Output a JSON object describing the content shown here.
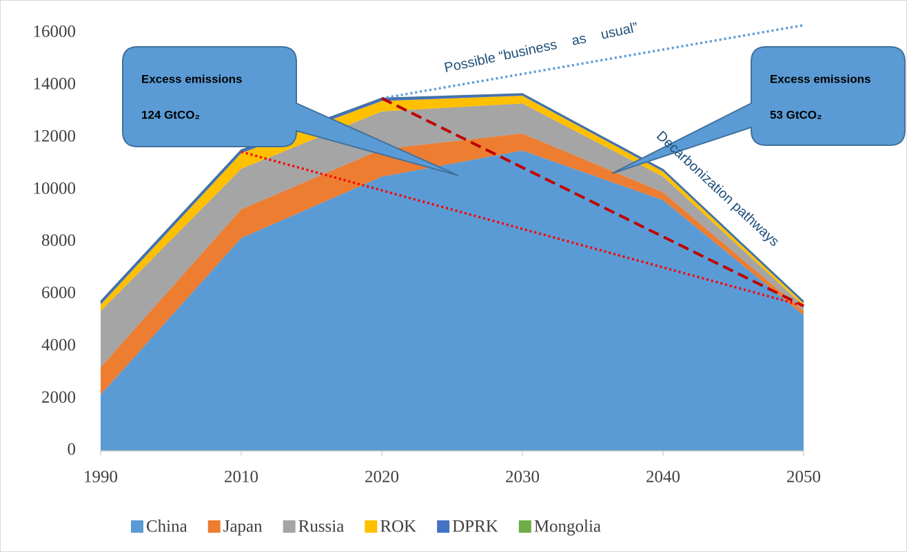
{
  "chart_data": {
    "type": "stacked_area",
    "categories": [
      "1990",
      "2010",
      "2020",
      "2030",
      "2040",
      "2050"
    ],
    "series": [
      {
        "name": "China",
        "color": "#5b9bd5",
        "values": [
          2150,
          8150,
          10500,
          11500,
          9600,
          5200
        ]
      },
      {
        "name": "Japan",
        "color": "#ed7d31",
        "values": [
          1050,
          1100,
          1050,
          650,
          300,
          150
        ]
      },
      {
        "name": "Russia",
        "color": "#a5a5a5",
        "values": [
          2150,
          1550,
          1450,
          1150,
          600,
          200
        ]
      },
      {
        "name": "ROK",
        "color": "#ffc000",
        "values": [
          250,
          600,
          400,
          300,
          200,
          100
        ]
      },
      {
        "name": "DPRK",
        "color": "#4472c4",
        "values": [
          100,
          100,
          80,
          50,
          50,
          50
        ]
      },
      {
        "name": "Mongolia",
        "color": "#70ad47",
        "values": [
          20,
          20,
          20,
          20,
          20,
          20
        ]
      }
    ],
    "reference_lines": [
      {
        "color": "#5b9bd5",
        "style": "dotted",
        "values": [
          null,
          null,
          13500,
          null,
          null,
          16300
        ]
      },
      {
        "color": "#c00000",
        "style": "dashed",
        "values": [
          null,
          null,
          13500,
          null,
          null,
          5550
        ]
      },
      {
        "color": "#ff0000",
        "style": "dotted",
        "values": [
          null,
          11450,
          null,
          null,
          null,
          5550
        ]
      }
    ],
    "annotations": [
      "Possible “business    as    usual”",
      "Decarbonization pathways"
    ],
    "callouts": [
      {
        "title": "Excess emissions",
        "text": "124 GtCO₂"
      },
      {
        "title": "Excess emissions",
        "text": "53 GtCO₂"
      }
    ],
    "ylim": [
      0,
      16000
    ],
    "yticks": [
      0,
      2000,
      4000,
      6000,
      8000,
      10000,
      12000,
      14000,
      16000
    ],
    "grid": false,
    "legend": "bottom"
  }
}
